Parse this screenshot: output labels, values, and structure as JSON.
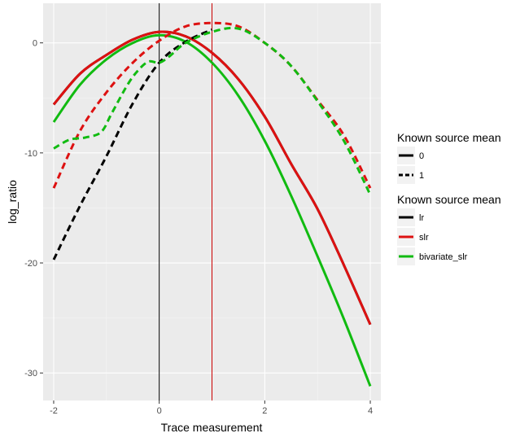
{
  "chart_data": {
    "type": "line",
    "xlabel": "Trace measurement",
    "ylabel": "log_ratio",
    "xlim": [
      -2.2,
      4.2
    ],
    "ylim": [
      -32.5,
      3.6
    ],
    "x_ticks": [
      -2,
      0,
      2,
      4
    ],
    "x_tick_labels": [
      "-2",
      "0",
      "2",
      "4"
    ],
    "y_ticks": [
      0,
      -10,
      -20,
      -30
    ],
    "y_tick_labels": [
      "0",
      "-10",
      "-20",
      "-30"
    ],
    "grid": true,
    "background": "#ebebeb",
    "vlines": [
      {
        "x": 0,
        "color": "#000000"
      },
      {
        "x": 1,
        "color": "#cc0000"
      }
    ],
    "legends": [
      {
        "title": "Known source mean",
        "kind": "linetype",
        "entries": [
          {
            "label": "0",
            "dash": "solid"
          },
          {
            "label": "1",
            "dash": "dashed"
          }
        ]
      },
      {
        "title": "Known source mean",
        "kind": "color",
        "entries": [
          {
            "label": "lr",
            "color": "#000000"
          },
          {
            "label": "slr",
            "color": "#dd1111"
          },
          {
            "label": "bivariate_slr",
            "color": "#11bb11"
          }
        ]
      }
    ],
    "series": [
      {
        "method": "lr",
        "mean": "0",
        "color": "#000000",
        "dash": "solid",
        "x": [
          -2,
          -1.5,
          -1,
          -0.5,
          0,
          0.5,
          1,
          1.5,
          2,
          2.5,
          3,
          3.5,
          4
        ],
        "y": [
          -5.6,
          -2.8,
          -1.1,
          0.3,
          1.0,
          0.6,
          -0.9,
          -3.3,
          -6.7,
          -11.0,
          -15.1,
          -20.2,
          -25.6
        ]
      },
      {
        "method": "slr",
        "mean": "0",
        "color": "#dd1111",
        "dash": "solid",
        "x": [
          -2,
          -1.5,
          -1,
          -0.5,
          0,
          0.5,
          1,
          1.5,
          2,
          2.5,
          3,
          3.5,
          4
        ],
        "y": [
          -5.6,
          -2.8,
          -1.1,
          0.3,
          1.0,
          0.6,
          -0.9,
          -3.3,
          -6.7,
          -11.0,
          -15.1,
          -20.2,
          -25.6
        ]
      },
      {
        "method": "bivariate_slr",
        "mean": "0",
        "color": "#11bb11",
        "dash": "solid",
        "x": [
          -2,
          -1.5,
          -1,
          -0.5,
          0,
          0.5,
          1,
          1.5,
          2,
          2.5,
          3,
          3.5,
          4
        ],
        "y": [
          -7.2,
          -3.8,
          -1.5,
          0.0,
          0.7,
          0.1,
          -1.8,
          -4.8,
          -8.9,
          -13.9,
          -19.4,
          -25.1,
          -31.2
        ]
      },
      {
        "method": "lr",
        "mean": "1",
        "color": "#000000",
        "dash": "dashed",
        "x": [
          -2,
          -1.5,
          -1,
          -0.5,
          0,
          0.5,
          1
        ],
        "y": [
          -19.7,
          -14.8,
          -10.3,
          -5.5,
          -1.8,
          0.1,
          1.2
        ]
      },
      {
        "method": "slr",
        "mean": "1",
        "color": "#dd1111",
        "dash": "dashed",
        "x": [
          -2,
          -1.5,
          -1,
          -0.5,
          0,
          0.5,
          1,
          1.5,
          2,
          2.5,
          3,
          3.5,
          4
        ],
        "y": [
          -13.2,
          -8.0,
          -4.5,
          -1.8,
          0.2,
          1.5,
          1.8,
          1.5,
          0.0,
          -2.1,
          -5.2,
          -8.4,
          -13.2
        ]
      },
      {
        "method": "bivariate_slr",
        "mean": "1",
        "color": "#11bb11",
        "dash": "dashed",
        "x": [
          -2,
          -1.7,
          -1.4,
          -1.1,
          -0.9,
          -0.6,
          -0.4,
          -0.2,
          0,
          0.2,
          0.5,
          1,
          1.5,
          2,
          2.5,
          3,
          3.5,
          4
        ],
        "y": [
          -9.6,
          -8.8,
          -8.6,
          -8.1,
          -6.4,
          -3.8,
          -2.5,
          -1.7,
          -1.8,
          -1.2,
          0.0,
          1.0,
          1.3,
          0.0,
          -2.1,
          -5.3,
          -8.9,
          -13.8
        ]
      }
    ]
  }
}
